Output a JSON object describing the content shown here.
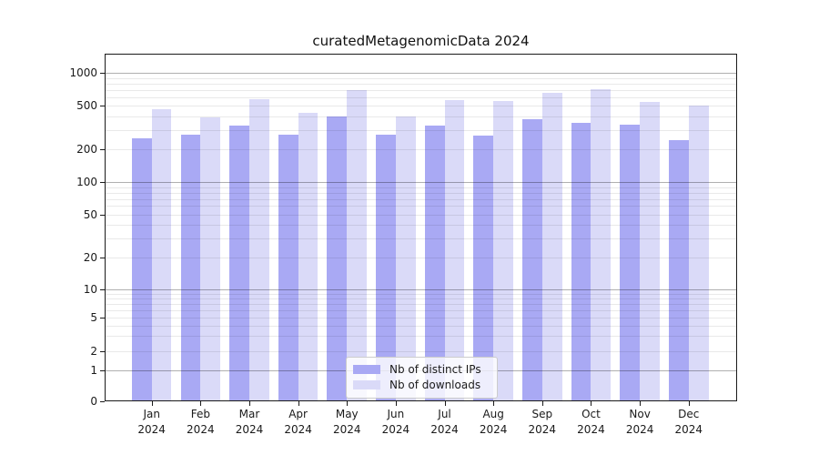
{
  "chart_data": {
    "type": "bar",
    "title": "curatedMetagenomicData 2024",
    "categories": [
      "Jan",
      "Feb",
      "Mar",
      "Apr",
      "May",
      "Jun",
      "Jul",
      "Aug",
      "Sep",
      "Oct",
      "Nov",
      "Dec"
    ],
    "category_year": "2024",
    "series": [
      {
        "name": "Nb of distinct IPs",
        "color": "#a9a9f4",
        "values": [
          250,
          270,
          330,
          270,
          400,
          270,
          330,
          265,
          380,
          350,
          335,
          245
        ]
      },
      {
        "name": "Nb of downloads",
        "color": "#dadaf8",
        "values": [
          470,
          395,
          575,
          430,
          695,
          400,
          560,
          555,
          660,
          715,
          545,
          500
        ]
      }
    ],
    "yscale": "symlog",
    "ylim": [
      0,
      1500
    ],
    "ytick_labels": [
      "0",
      "1",
      "2",
      "5",
      "10",
      "20",
      "50",
      "100",
      "200",
      "500",
      "1000"
    ],
    "ytick_values": [
      0,
      1,
      2,
      5,
      10,
      20,
      50,
      100,
      200,
      500,
      1000
    ],
    "major_grid_values": [
      1,
      10,
      100,
      1000
    ],
    "minor_grid_values": [
      2,
      3,
      4,
      5,
      6,
      7,
      8,
      9,
      20,
      30,
      40,
      50,
      60,
      70,
      80,
      90,
      200,
      300,
      400,
      500,
      600,
      700,
      800,
      900
    ],
    "grid": true,
    "legend_position": "lower center"
  }
}
